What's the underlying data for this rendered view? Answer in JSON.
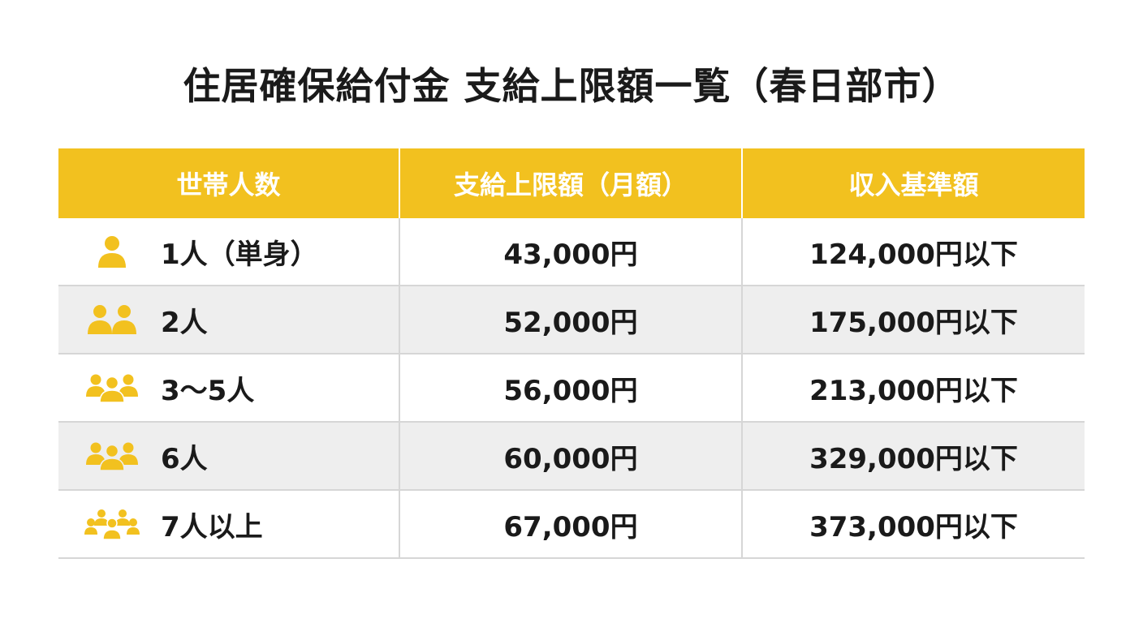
{
  "title": "住居確保給付金 支給上限額一覧（春日部市）",
  "colors": {
    "accent": "#f2c11f",
    "header_text": "#ffffff",
    "row_shade": "#eeeeee"
  },
  "table": {
    "headers": [
      "世帯人数",
      "支給上限額（月額）",
      "収入基準額"
    ],
    "rows": [
      {
        "icon": "person-single-icon",
        "household": "1人（単身）",
        "limit": "43,000円",
        "income": "124,000円以下"
      },
      {
        "icon": "person-two-icon",
        "household": "2人",
        "limit": "52,000円",
        "income": "175,000円以下"
      },
      {
        "icon": "person-three-icon",
        "household": "3〜5人",
        "limit": "56,000円",
        "income": "213,000円以下"
      },
      {
        "icon": "person-three-icon",
        "household": "6人",
        "limit": "60,000円",
        "income": "329,000円以下"
      },
      {
        "icon": "person-group-icon",
        "household": "7人以上",
        "limit": "67,000円",
        "income": "373,000円以下"
      }
    ]
  }
}
